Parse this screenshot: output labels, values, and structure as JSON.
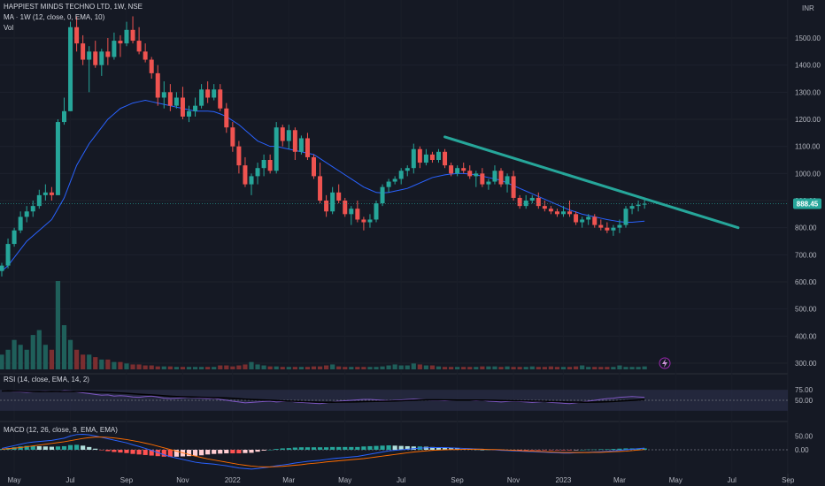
{
  "header": {
    "symbol_line": "HAPPIEST MINDS TECHNO LTD, 1W, NSE",
    "ma_line": "MA · 1W (12, close, 0, EMA, 10)",
    "vol_label": "Vol"
  },
  "currency": "INR",
  "rsi_label": "RSI (14, close, EMA, 14, 2)",
  "macd_label": "MACD (12, 26, close, 9, EMA, EMA)",
  "last_price": "888.45",
  "lightning_icon": "lightning-icon",
  "colors": {
    "background": "#151924",
    "up": "#26a69a",
    "down": "#ef5350",
    "ma": "#2962ff",
    "trendline": "#26a69a",
    "rsi_band": "#2a2e47",
    "rsi_line": "#7e57c2",
    "macd_line": "#2962ff",
    "signal_line": "#ff6d00",
    "hist_up_strong": "#26a69a",
    "hist_up_weak": "#b2dfdb",
    "hist_down_strong": "#ff5252",
    "hist_down_weak": "#ffcdd2"
  },
  "chart_data": {
    "type": "candlestick",
    "title": "HAPPIEST MINDS TECHNO LTD, 1W, NSE",
    "price_axis": {
      "ticks": [
        "1500.00",
        "1400.00",
        "1300.00",
        "1200.00",
        "1100.00",
        "1000.00",
        "900.00",
        "800.00",
        "700.00",
        "600.00",
        "500.00",
        "400.00",
        "300.00"
      ],
      "range": [
        300,
        1500
      ],
      "last_price": 888.45
    },
    "time_axis": {
      "labels": [
        "May",
        "Jul",
        "Sep",
        "Nov",
        "2022",
        "Mar",
        "May",
        "Jul",
        "Sep",
        "Nov",
        "2023",
        "Mar",
        "May",
        "Jul",
        "Sep"
      ],
      "week_index": [
        0,
        9,
        18,
        27,
        35,
        44,
        53,
        62,
        71,
        80,
        88,
        97,
        106,
        115,
        124
      ]
    },
    "candles_ohlc": [
      [
        640,
        670,
        620,
        660
      ],
      [
        660,
        760,
        650,
        740
      ],
      [
        740,
        800,
        730,
        790
      ],
      [
        790,
        860,
        780,
        840
      ],
      [
        840,
        880,
        820,
        860
      ],
      [
        860,
        900,
        840,
        880
      ],
      [
        880,
        940,
        870,
        920
      ],
      [
        920,
        960,
        900,
        930
      ],
      [
        930,
        950,
        900,
        920
      ],
      [
        920,
        1200,
        920,
        1190
      ],
      [
        1190,
        1280,
        1180,
        1230
      ],
      [
        1230,
        1560,
        1230,
        1540
      ],
      [
        1540,
        1580,
        1450,
        1480
      ],
      [
        1480,
        1510,
        1400,
        1420
      ],
      [
        1420,
        1470,
        1300,
        1450
      ],
      [
        1450,
        1490,
        1390,
        1400
      ],
      [
        1400,
        1460,
        1360,
        1450
      ],
      [
        1450,
        1500,
        1400,
        1430
      ],
      [
        1430,
        1520,
        1420,
        1490
      ],
      [
        1490,
        1510,
        1430,
        1480
      ],
      [
        1480,
        1560,
        1470,
        1530
      ],
      [
        1530,
        1580,
        1480,
        1490
      ],
      [
        1490,
        1540,
        1440,
        1450
      ],
      [
        1450,
        1480,
        1410,
        1420
      ],
      [
        1420,
        1430,
        1350,
        1370
      ],
      [
        1370,
        1400,
        1250,
        1280
      ],
      [
        1280,
        1340,
        1240,
        1300
      ],
      [
        1300,
        1330,
        1230,
        1250
      ],
      [
        1250,
        1300,
        1240,
        1280
      ],
      [
        1280,
        1320,
        1200,
        1210
      ],
      [
        1210,
        1250,
        1190,
        1230
      ],
      [
        1230,
        1280,
        1210,
        1250
      ],
      [
        1250,
        1330,
        1240,
        1310
      ],
      [
        1310,
        1340,
        1260,
        1280
      ],
      [
        1280,
        1330,
        1270,
        1310
      ],
      [
        1310,
        1330,
        1230,
        1240
      ],
      [
        1240,
        1260,
        1150,
        1170
      ],
      [
        1170,
        1190,
        1080,
        1100
      ],
      [
        1100,
        1120,
        1000,
        1030
      ],
      [
        1030,
        1060,
        950,
        960
      ],
      [
        960,
        1000,
        920,
        990
      ],
      [
        990,
        1040,
        960,
        1020
      ],
      [
        1020,
        1070,
        990,
        1050
      ],
      [
        1050,
        1070,
        1000,
        1010
      ],
      [
        1010,
        1190,
        1000,
        1170
      ],
      [
        1170,
        1180,
        1100,
        1120
      ],
      [
        1120,
        1180,
        1090,
        1160
      ],
      [
        1160,
        1170,
        1050,
        1080
      ],
      [
        1080,
        1140,
        1070,
        1130
      ],
      [
        1130,
        1150,
        1050,
        1060
      ],
      [
        1060,
        1070,
        980,
        990
      ],
      [
        990,
        1040,
        890,
        900
      ],
      [
        900,
        920,
        840,
        860
      ],
      [
        860,
        950,
        850,
        930
      ],
      [
        930,
        960,
        890,
        900
      ],
      [
        900,
        910,
        840,
        850
      ],
      [
        850,
        880,
        810,
        870
      ],
      [
        870,
        900,
        820,
        830
      ],
      [
        830,
        840,
        790,
        820
      ],
      [
        820,
        850,
        800,
        830
      ],
      [
        830,
        900,
        820,
        890
      ],
      [
        890,
        960,
        880,
        950
      ],
      [
        950,
        980,
        930,
        970
      ],
      [
        970,
        990,
        960,
        980
      ],
      [
        980,
        1020,
        960,
        1010
      ],
      [
        1010,
        1030,
        990,
        1020
      ],
      [
        1020,
        1110,
        1000,
        1090
      ],
      [
        1090,
        1100,
        1020,
        1040
      ],
      [
        1040,
        1090,
        1030,
        1070
      ],
      [
        1070,
        1080,
        1040,
        1050
      ],
      [
        1050,
        1090,
        1040,
        1080
      ],
      [
        1080,
        1090,
        1020,
        1030
      ],
      [
        1030,
        1040,
        990,
        1000
      ],
      [
        1000,
        1030,
        990,
        1020
      ],
      [
        1020,
        1040,
        1000,
        1010
      ],
      [
        1010,
        1030,
        980,
        990
      ],
      [
        990,
        1010,
        950,
        1000
      ],
      [
        1000,
        1020,
        950,
        960
      ],
      [
        960,
        980,
        940,
        970
      ],
      [
        970,
        1030,
        960,
        1010
      ],
      [
        1010,
        1020,
        950,
        960
      ],
      [
        960,
        1000,
        930,
        990
      ],
      [
        990,
        1010,
        900,
        910
      ],
      [
        910,
        920,
        870,
        880
      ],
      [
        880,
        920,
        870,
        900
      ],
      [
        900,
        920,
        890,
        910
      ],
      [
        910,
        930,
        870,
        880
      ],
      [
        880,
        900,
        860,
        870
      ],
      [
        870,
        880,
        850,
        860
      ],
      [
        860,
        870,
        840,
        850
      ],
      [
        850,
        880,
        840,
        860
      ],
      [
        860,
        900,
        840,
        850
      ],
      [
        850,
        860,
        810,
        820
      ],
      [
        820,
        840,
        800,
        830
      ],
      [
        830,
        850,
        810,
        840
      ],
      [
        840,
        850,
        800,
        810
      ],
      [
        810,
        830,
        790,
        800
      ],
      [
        800,
        820,
        780,
        790
      ],
      [
        790,
        810,
        770,
        800
      ],
      [
        800,
        830,
        780,
        810
      ],
      [
        810,
        880,
        800,
        870
      ],
      [
        870,
        890,
        850,
        880
      ],
      [
        880,
        900,
        860,
        885
      ],
      [
        885,
        910,
        870,
        888.45
      ]
    ],
    "ma": [
      640,
      660,
      690,
      720,
      750,
      770,
      790,
      810,
      830,
      870,
      910,
      970,
      1030,
      1070,
      1110,
      1140,
      1170,
      1200,
      1220,
      1240,
      1250,
      1260,
      1265,
      1270,
      1265,
      1260,
      1255,
      1250,
      1245,
      1240,
      1235,
      1230,
      1230,
      1230,
      1228,
      1220,
      1210,
      1195,
      1180,
      1160,
      1140,
      1120,
      1110,
      1100,
      1100,
      1095,
      1090,
      1085,
      1080,
      1075,
      1070,
      1055,
      1040,
      1025,
      1010,
      995,
      980,
      965,
      950,
      940,
      930,
      928,
      930,
      935,
      940,
      945,
      955,
      965,
      975,
      985,
      990,
      995,
      998,
      1000,
      1000,
      998,
      995,
      990,
      985,
      980,
      975,
      965,
      955,
      945,
      935,
      925,
      915,
      905,
      895,
      885,
      875,
      865,
      858,
      850,
      845,
      840,
      835,
      830,
      826,
      822,
      820,
      820,
      822,
      824
    ],
    "trendline": {
      "from": [
        71,
        1135
      ],
      "to": [
        118,
        800
      ]
    },
    "volume": [
      30,
      40,
      60,
      50,
      40,
      70,
      80,
      50,
      40,
      180,
      90,
      60,
      40,
      30,
      30,
      25,
      20,
      20,
      15,
      15,
      12,
      10,
      10,
      8,
      8,
      6,
      6,
      6,
      5,
      5,
      5,
      5,
      5,
      5,
      5,
      8,
      8,
      6,
      8,
      10,
      15,
      10,
      8,
      6,
      6,
      5,
      5,
      5,
      5,
      5,
      6,
      6,
      8,
      10,
      6,
      5,
      5,
      5,
      5,
      5,
      5,
      6,
      8,
      10,
      8,
      8,
      12,
      10,
      8,
      8,
      6,
      5,
      5,
      5,
      5,
      5,
      5,
      6,
      6,
      6,
      5,
      6,
      5,
      5,
      5,
      6,
      5,
      5,
      6,
      5,
      5,
      5,
      6,
      8,
      5,
      5,
      5,
      5,
      5,
      8,
      5,
      5,
      5,
      6
    ],
    "rsi": [
      72,
      73,
      71,
      70,
      69,
      70,
      71,
      72,
      71,
      70,
      73,
      72,
      70,
      68,
      66,
      64,
      62,
      63,
      60,
      61,
      60,
      58,
      57,
      59,
      60,
      58,
      55,
      54,
      55,
      56,
      57,
      56,
      55,
      54,
      55,
      52,
      50,
      48,
      46,
      44,
      45,
      46,
      47,
      48,
      46,
      47,
      48,
      46,
      45,
      44,
      43,
      42,
      44,
      46,
      48,
      49,
      50,
      51,
      52,
      52,
      51,
      50,
      49,
      50,
      51,
      52,
      53,
      52,
      51,
      50,
      50,
      49,
      50,
      51,
      50,
      50,
      49,
      50,
      48,
      47,
      46,
      47,
      48,
      47,
      46,
      45,
      46,
      47,
      45,
      44,
      43,
      42,
      44,
      46,
      48,
      50,
      52,
      54,
      55,
      57,
      58,
      59,
      58,
      57
    ],
    "macd": [
      5,
      10,
      15,
      20,
      25,
      28,
      30,
      32,
      34,
      38,
      42,
      50,
      55,
      56,
      54,
      50,
      45,
      40,
      35,
      30,
      25,
      18,
      12,
      5,
      -2,
      -10,
      -18,
      -25,
      -30,
      -35,
      -40,
      -45,
      -48,
      -50,
      -52,
      -55,
      -58,
      -62,
      -66,
      -68,
      -70,
      -68,
      -65,
      -62,
      -58,
      -55,
      -52,
      -48,
      -45,
      -42,
      -40,
      -38,
      -35,
      -32,
      -30,
      -28,
      -26,
      -24,
      -20,
      -16,
      -12,
      -8,
      -4,
      -2,
      0,
      2,
      4,
      6,
      7,
      8,
      8,
      8,
      7,
      6,
      5,
      4,
      3,
      2,
      1,
      0,
      -2,
      -3,
      -4,
      -5,
      -6,
      -7,
      -8,
      -9,
      -10,
      -11,
      -12,
      -12,
      -11,
      -10,
      -9,
      -8,
      -7,
      -6,
      -4,
      -2,
      0,
      2,
      4,
      6
    ],
    "signal": [
      2,
      4,
      6,
      8,
      11,
      14,
      17,
      20,
      23,
      26,
      29,
      33,
      37,
      41,
      44,
      46,
      46,
      45,
      43,
      40,
      37,
      33,
      29,
      24,
      19,
      13,
      7,
      1,
      -5,
      -11,
      -17,
      -23,
      -28,
      -33,
      -37,
      -41,
      -45,
      -49,
      -53,
      -56,
      -59,
      -61,
      -62,
      -62,
      -61,
      -60,
      -58,
      -56,
      -54,
      -51,
      -49,
      -47,
      -44,
      -42,
      -40,
      -38,
      -36,
      -34,
      -32,
      -29,
      -26,
      -23,
      -20,
      -17,
      -14,
      -11,
      -8,
      -6,
      -4,
      -2,
      -1,
      0,
      1,
      1,
      2,
      2,
      2,
      2,
      1,
      1,
      0,
      -1,
      -2,
      -3,
      -4,
      -5,
      -6,
      -7,
      -8,
      -9,
      -10,
      -10,
      -10,
      -10,
      -10,
      -9,
      -9,
      -8,
      -7,
      -6,
      -5,
      -3,
      -1,
      1
    ],
    "rsi_axis": {
      "ticks": [
        "75.00",
        "50.00"
      ],
      "range": [
        10,
        90
      ]
    },
    "macd_axis": {
      "ticks": [
        "50.00",
        "0.00"
      ],
      "range": [
        -80,
        80
      ]
    }
  }
}
